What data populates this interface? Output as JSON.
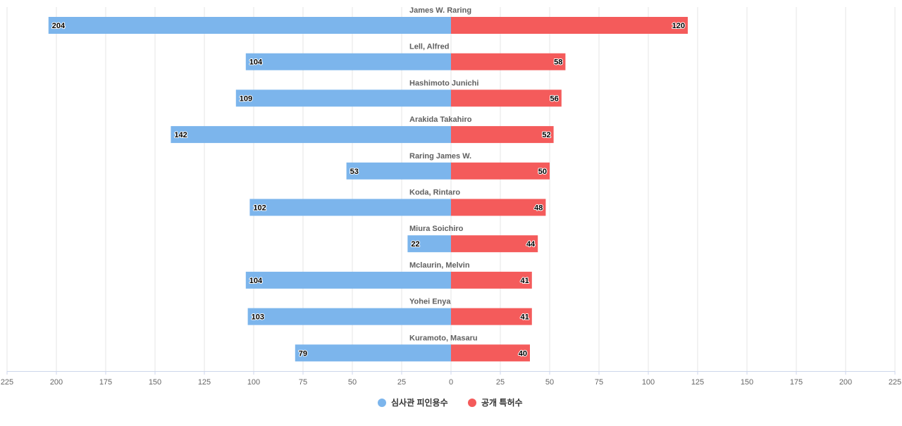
{
  "chart_data": {
    "type": "bar",
    "orientation": "horizontal-diverging",
    "title": "",
    "xlabel": "",
    "ylabel": "",
    "xlim": [
      -225,
      225
    ],
    "x_ticks": [
      225,
      200,
      175,
      150,
      125,
      100,
      75,
      50,
      25,
      0,
      25,
      50,
      75,
      100,
      125,
      150,
      175,
      200,
      225
    ],
    "grid": true,
    "legend_position": "bottom-center",
    "categories": [
      "James W. Raring",
      "Lell, Alfred",
      "Hashimoto Junichi",
      "Arakida Takahiro",
      "Raring James W.",
      "Koda, Rintaro",
      "Miura Soichiro",
      "Mclaurin, Melvin",
      "Yohei Enya",
      "Kuramoto, Masaru"
    ],
    "series": [
      {
        "name": "심사관 피인용수",
        "side": "left",
        "color": "#7cb5ec",
        "values": [
          204,
          104,
          109,
          142,
          53,
          102,
          22,
          104,
          103,
          79
        ]
      },
      {
        "name": "공개 특허수",
        "side": "right",
        "color": "#f45b5b",
        "values": [
          120,
          58,
          56,
          52,
          50,
          48,
          44,
          41,
          41,
          40
        ]
      }
    ]
  }
}
